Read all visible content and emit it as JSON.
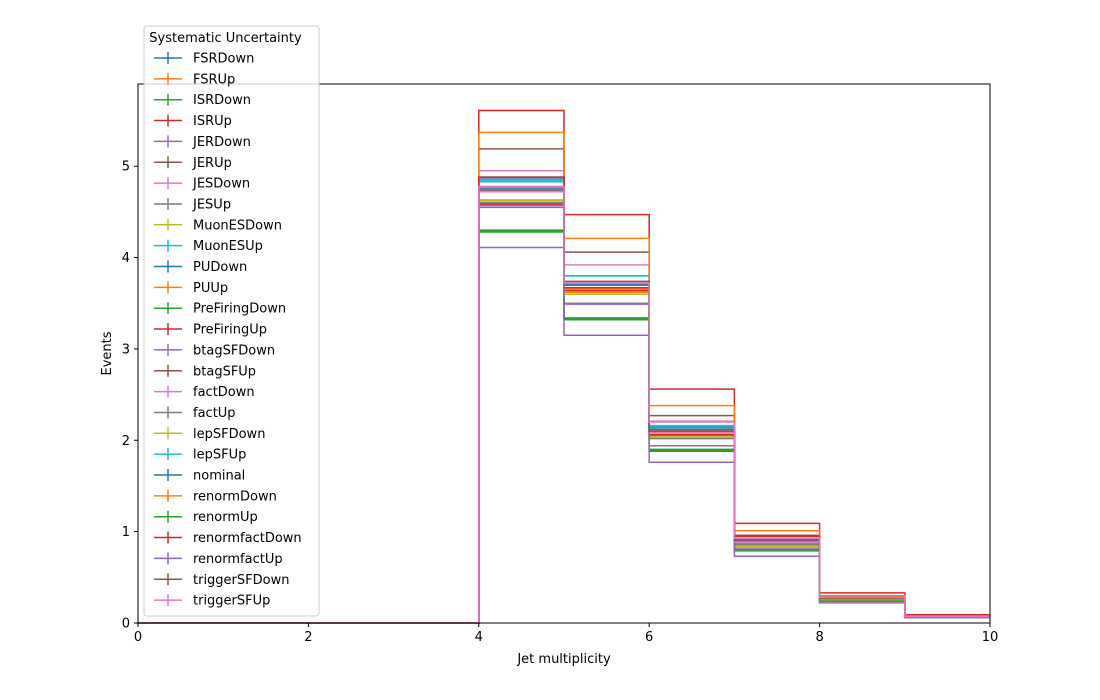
{
  "chart_data": {
    "type": "line",
    "drawstyle": "step",
    "xlabel": "Jet multiplicity",
    "ylabel": "Events",
    "xlim": [
      0,
      10
    ],
    "ylim": [
      0,
      5.9
    ],
    "xticks": [
      0,
      2,
      4,
      6,
      8,
      10
    ],
    "yticks": [
      0,
      1,
      2,
      3,
      4,
      5
    ],
    "grid": false,
    "bin_edges": [
      0,
      1,
      2,
      3,
      4,
      5,
      6,
      7,
      8,
      9,
      10
    ],
    "legend": {
      "title": "Systematic Uncertainty",
      "position": "upper-left-outside"
    },
    "series": [
      {
        "name": "FSRDown",
        "color": "#1f77b4",
        "values": [
          0,
          0,
          0,
          0,
          4.86,
          3.7,
          2.14,
          0.9,
          0.27,
          0.07
        ]
      },
      {
        "name": "FSRUp",
        "color": "#ff7f0e",
        "values": [
          0,
          0,
          0,
          0,
          4.63,
          3.62,
          2.06,
          0.86,
          0.26,
          0.07
        ]
      },
      {
        "name": "ISRDown",
        "color": "#2ca02c",
        "values": [
          0,
          0,
          0,
          0,
          4.3,
          3.33,
          1.89,
          0.8,
          0.24,
          0.06
        ]
      },
      {
        "name": "ISRUp",
        "color": "#d62728",
        "values": [
          0,
          0,
          0,
          0,
          5.61,
          4.47,
          2.56,
          1.09,
          0.33,
          0.09
        ]
      },
      {
        "name": "JERDown",
        "color": "#9467bd",
        "values": [
          0,
          0,
          0,
          0,
          4.55,
          3.64,
          2.05,
          0.88,
          0.26,
          0.07
        ]
      },
      {
        "name": "JERUp",
        "color": "#8c564b",
        "values": [
          0,
          0,
          0,
          0,
          4.74,
          3.7,
          2.12,
          0.9,
          0.27,
          0.07
        ]
      },
      {
        "name": "JESDown",
        "color": "#e377c2",
        "values": [
          0,
          0,
          0,
          0,
          4.95,
          3.92,
          2.21,
          0.92,
          0.28,
          0.07
        ]
      },
      {
        "name": "JESUp",
        "color": "#7f7f7f",
        "values": [
          0,
          0,
          0,
          0,
          4.59,
          3.5,
          2.02,
          0.87,
          0.26,
          0.07
        ]
      },
      {
        "name": "MuonESDown",
        "color": "#bcbd22",
        "values": [
          0,
          0,
          0,
          0,
          4.6,
          3.6,
          2.04,
          0.85,
          0.26,
          0.07
        ]
      },
      {
        "name": "MuonESUp",
        "color": "#17becf",
        "values": [
          0,
          0,
          0,
          0,
          4.83,
          3.8,
          2.15,
          0.91,
          0.27,
          0.07
        ]
      },
      {
        "name": "PUDown",
        "color": "#1f77b4",
        "values": [
          0,
          0,
          0,
          0,
          4.88,
          3.7,
          2.12,
          0.9,
          0.27,
          0.07
        ]
      },
      {
        "name": "PUUp",
        "color": "#ff7f0e",
        "values": [
          0,
          0,
          0,
          0,
          4.62,
          3.66,
          2.08,
          0.88,
          0.26,
          0.07
        ]
      },
      {
        "name": "PreFiringDown",
        "color": "#2ca02c",
        "values": [
          0,
          0,
          0,
          0,
          4.28,
          3.32,
          1.88,
          0.79,
          0.24,
          0.06
        ]
      },
      {
        "name": "PreFiringUp",
        "color": "#d62728",
        "values": [
          0,
          0,
          0,
          0,
          4.58,
          3.64,
          2.06,
          0.86,
          0.26,
          0.07
        ]
      },
      {
        "name": "btagSFDown",
        "color": "#9467bd",
        "values": [
          0,
          0,
          0,
          0,
          4.57,
          3.49,
          1.94,
          0.82,
          0.25,
          0.06
        ]
      },
      {
        "name": "btagSFUp",
        "color": "#8c564b",
        "values": [
          0,
          0,
          0,
          0,
          5.19,
          4.06,
          2.27,
          0.96,
          0.29,
          0.08
        ]
      },
      {
        "name": "factDown",
        "color": "#e377c2",
        "values": [
          0,
          0,
          0,
          0,
          4.72,
          3.72,
          2.09,
          0.88,
          0.26,
          0.07
        ]
      },
      {
        "name": "factUp",
        "color": "#7f7f7f",
        "values": [
          0,
          0,
          0,
          0,
          4.6,
          3.5,
          2.02,
          0.86,
          0.26,
          0.07
        ]
      },
      {
        "name": "lepSFDown",
        "color": "#bcbd22",
        "values": [
          0,
          0,
          0,
          0,
          4.62,
          3.6,
          2.04,
          0.84,
          0.25,
          0.07
        ]
      },
      {
        "name": "lepSFUp",
        "color": "#17becf",
        "values": [
          0,
          0,
          0,
          0,
          4.84,
          3.8,
          2.16,
          0.91,
          0.27,
          0.07
        ]
      },
      {
        "name": "nominal",
        "color": "#1f77b4",
        "values": [
          0,
          0,
          0,
          0,
          4.76,
          3.72,
          2.1,
          0.9,
          0.27,
          0.07
        ]
      },
      {
        "name": "renormDown",
        "color": "#ff7f0e",
        "values": [
          0,
          0,
          0,
          0,
          5.37,
          4.21,
          2.38,
          1.01,
          0.3,
          0.08
        ]
      },
      {
        "name": "renormUp",
        "color": "#2ca02c",
        "values": [
          0,
          0,
          0,
          0,
          4.29,
          3.34,
          1.9,
          0.8,
          0.24,
          0.06
        ]
      },
      {
        "name": "renormfactDown",
        "color": "#d62728",
        "values": [
          0,
          0,
          0,
          0,
          4.88,
          3.67,
          2.1,
          0.95,
          0.28,
          0.07
        ]
      },
      {
        "name": "renormfactUp",
        "color": "#9467bd",
        "values": [
          0,
          0,
          0,
          0,
          4.11,
          3.15,
          1.76,
          0.73,
          0.22,
          0.06
        ]
      },
      {
        "name": "triggerSFDown",
        "color": "#8c564b",
        "values": [
          0,
          0,
          0,
          0,
          4.74,
          3.74,
          2.1,
          0.91,
          0.27,
          0.07
        ]
      },
      {
        "name": "triggerSFUp",
        "color": "#e377c2",
        "values": [
          0,
          0,
          0,
          0,
          4.78,
          3.72,
          2.2,
          0.93,
          0.28,
          0.07
        ]
      }
    ]
  }
}
